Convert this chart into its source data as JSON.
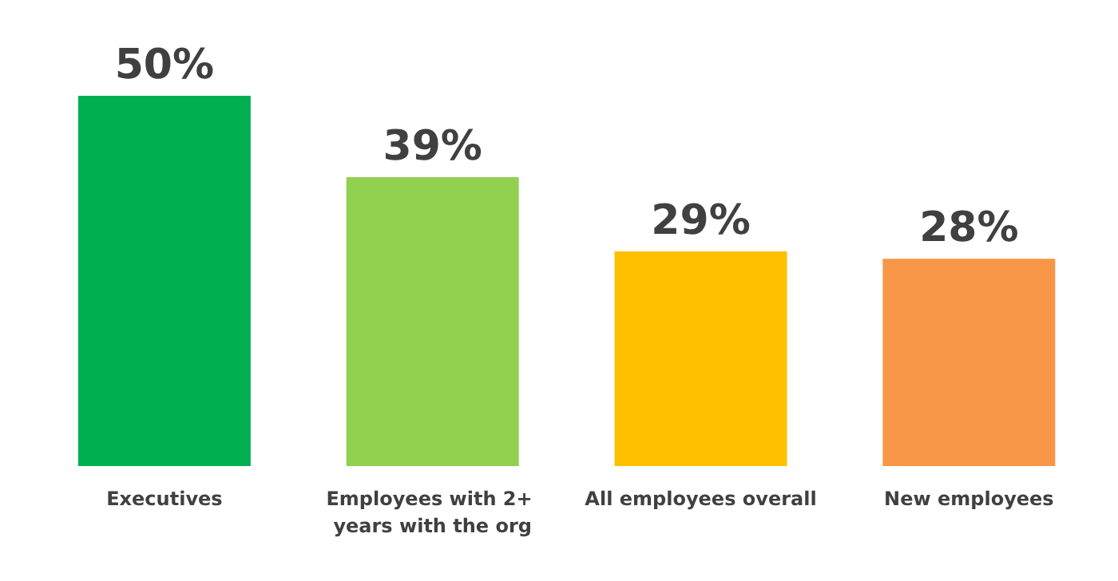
{
  "chart_data": {
    "type": "bar",
    "categories": [
      "Executives",
      "Employees with 2+ years with the org",
      "All employees overall",
      "New employees"
    ],
    "values": [
      50,
      39,
      29,
      28
    ],
    "colors": [
      "#00b050",
      "#92d050",
      "#ffc000",
      "#f79646"
    ],
    "value_labels": [
      "50%",
      "39%",
      "29%",
      "28%"
    ]
  }
}
